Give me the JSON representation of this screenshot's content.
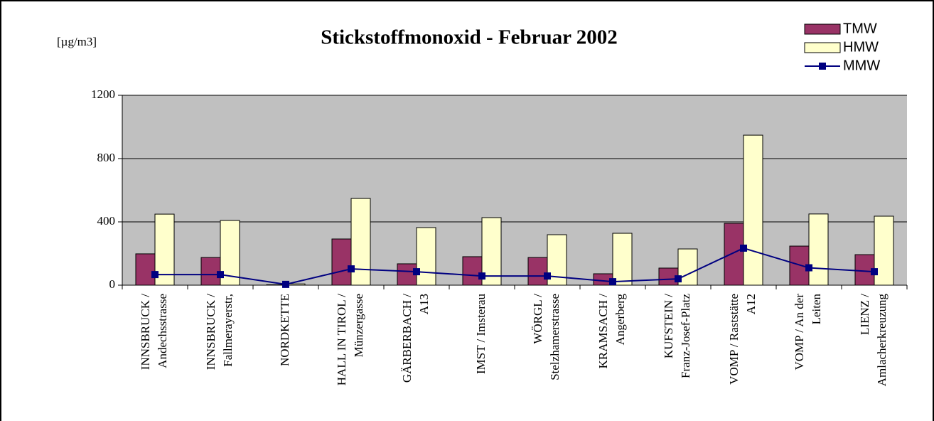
{
  "chart_data": {
    "type": "bar_line",
    "title": "Stickstoffmonoxid - Februar 2002",
    "y_label": "[µg/m3]",
    "categories": [
      [
        "INNSBRUCK /",
        "Andechsstrasse"
      ],
      [
        "INNSBRUCK /",
        "Fallmerayerstr,"
      ],
      [
        "NORDKETTE"
      ],
      [
        "HALL IN TIROL /",
        "Münzergasse"
      ],
      [
        "GÄRBERBACH /",
        "A13"
      ],
      [
        "IMST / Imsterau"
      ],
      [
        "WÖRGL /",
        "Stelzhamerstrasse"
      ],
      [
        "KRAMSACH /",
        "Angerberg"
      ],
      [
        "KUFSTEIN /",
        "Franz-Josef-Platz"
      ],
      [
        "VOMP / Raststätte",
        "A12"
      ],
      [
        "VOMP / An der",
        "Leiten"
      ],
      [
        "LIENZ /",
        "Amlacherkreuzung"
      ]
    ],
    "series": [
      {
        "name": "TMW",
        "type": "bar",
        "color": "#993366",
        "values": [
          198,
          175,
          3,
          292,
          135,
          180,
          175,
          72,
          108,
          391,
          247,
          193
        ]
      },
      {
        "name": "HMW",
        "type": "bar",
        "color": "#ffffcc",
        "values": [
          449,
          409,
          8,
          548,
          364,
          427,
          319,
          328,
          229,
          948,
          450,
          436
        ]
      },
      {
        "name": "MMW",
        "type": "line",
        "color": "#000080",
        "values": [
          67,
          67,
          5,
          103,
          85,
          58,
          58,
          22,
          40,
          234,
          110,
          85
        ]
      }
    ],
    "ylim": [
      0,
      1200
    ],
    "yticks": [
      0,
      400,
      800,
      1200
    ],
    "grid": true
  }
}
